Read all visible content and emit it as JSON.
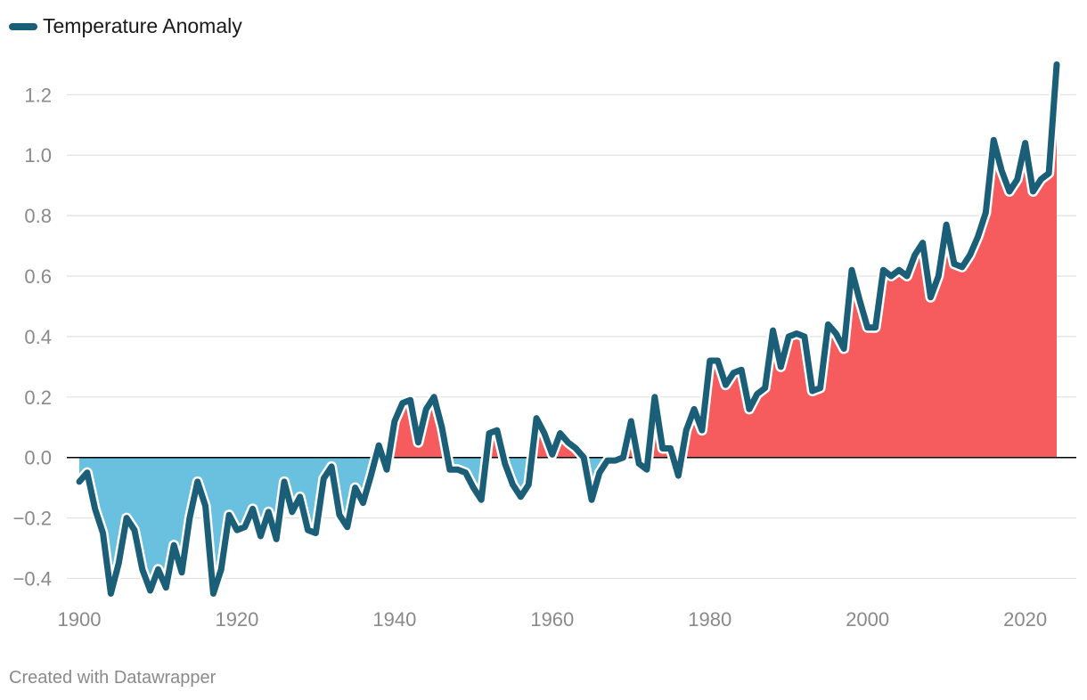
{
  "legend": {
    "label": "Temperature Anomaly"
  },
  "footer": {
    "credit": "Created with Datawrapper"
  },
  "colors": {
    "line": "#1a5e78",
    "positive_fill": "#f65b5d",
    "negative_fill": "#6ac0df",
    "grid": "#e1e1e1",
    "zero": "#000000"
  },
  "chart_data": {
    "type": "area",
    "title": "",
    "xlabel": "",
    "ylabel": "",
    "series": [
      {
        "name": "Temperature Anomaly"
      }
    ],
    "x": [
      1900,
      1901,
      1902,
      1903,
      1904,
      1905,
      1906,
      1907,
      1908,
      1909,
      1910,
      1911,
      1912,
      1913,
      1914,
      1915,
      1916,
      1917,
      1918,
      1919,
      1920,
      1921,
      1922,
      1923,
      1924,
      1925,
      1926,
      1927,
      1928,
      1929,
      1930,
      1931,
      1932,
      1933,
      1934,
      1935,
      1936,
      1937,
      1938,
      1939,
      1940,
      1941,
      1942,
      1943,
      1944,
      1945,
      1946,
      1947,
      1948,
      1949,
      1950,
      1951,
      1952,
      1953,
      1954,
      1955,
      1956,
      1957,
      1958,
      1959,
      1960,
      1961,
      1962,
      1963,
      1964,
      1965,
      1966,
      1967,
      1968,
      1969,
      1970,
      1971,
      1972,
      1973,
      1974,
      1975,
      1976,
      1977,
      1978,
      1979,
      1980,
      1981,
      1982,
      1983,
      1984,
      1985,
      1986,
      1987,
      1988,
      1989,
      1990,
      1991,
      1992,
      1993,
      1994,
      1995,
      1996,
      1997,
      1998,
      1999,
      2000,
      2001,
      2002,
      2003,
      2004,
      2005,
      2006,
      2007,
      2008,
      2009,
      2010,
      2011,
      2012,
      2013,
      2014,
      2015,
      2016,
      2017,
      2018,
      2019,
      2020,
      2021,
      2022,
      2023,
      2024
    ],
    "y": [
      -0.08,
      -0.05,
      -0.17,
      -0.25,
      -0.45,
      -0.35,
      -0.2,
      -0.24,
      -0.37,
      -0.44,
      -0.37,
      -0.43,
      -0.29,
      -0.38,
      -0.2,
      -0.08,
      -0.16,
      -0.45,
      -0.37,
      -0.19,
      -0.24,
      -0.23,
      -0.17,
      -0.26,
      -0.18,
      -0.27,
      -0.08,
      -0.18,
      -0.13,
      -0.24,
      -0.25,
      -0.07,
      -0.03,
      -0.19,
      -0.23,
      -0.1,
      -0.15,
      -0.06,
      0.04,
      -0.04,
      0.12,
      0.18,
      0.19,
      0.05,
      0.16,
      0.2,
      0.1,
      -0.04,
      -0.04,
      -0.05,
      -0.1,
      -0.14,
      0.08,
      0.09,
      -0.02,
      -0.09,
      -0.13,
      -0.09,
      0.13,
      0.08,
      0.01,
      0.08,
      0.05,
      0.03,
      0.0,
      -0.14,
      -0.05,
      -0.01,
      -0.01,
      0.0,
      0.12,
      -0.02,
      -0.04,
      0.2,
      0.03,
      0.03,
      -0.06,
      0.09,
      0.16,
      0.09,
      0.32,
      0.32,
      0.24,
      0.28,
      0.29,
      0.16,
      0.21,
      0.23,
      0.42,
      0.3,
      0.4,
      0.41,
      0.4,
      0.22,
      0.23,
      0.44,
      0.41,
      0.36,
      0.62,
      0.52,
      0.43,
      0.43,
      0.62,
      0.6,
      0.62,
      0.6,
      0.67,
      0.71,
      0.53,
      0.6,
      0.77,
      0.64,
      0.63,
      0.67,
      0.73,
      0.81,
      1.05,
      0.95,
      0.88,
      0.92,
      1.04,
      0.88,
      0.92,
      0.94,
      1.3
    ],
    "xticks": [
      "1900",
      "1920",
      "1940",
      "1960",
      "1980",
      "2000",
      "2020"
    ],
    "yticks": [
      "−0.4",
      "−0.2",
      "0.0",
      "0.2",
      "0.4",
      "0.6",
      "0.8",
      "1.0",
      "1.2"
    ],
    "ylim": [
      -0.48,
      1.38
    ],
    "xlim": [
      1900,
      2024
    ],
    "grid": true,
    "legend_position": "top-left"
  }
}
